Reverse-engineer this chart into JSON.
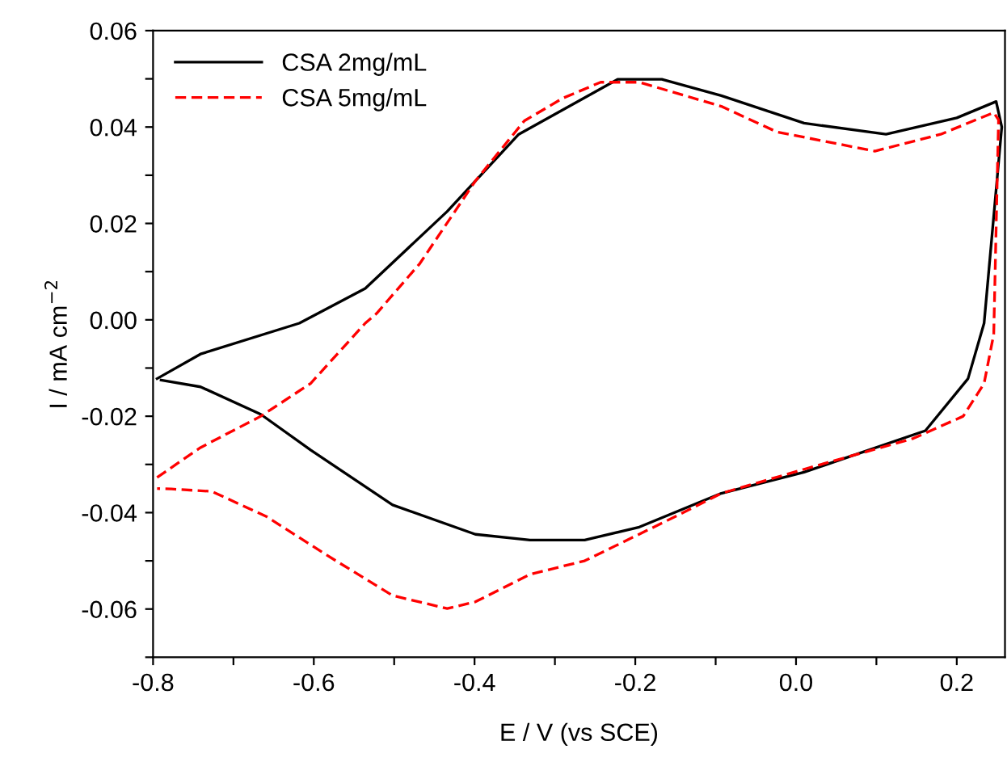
{
  "chart_data": {
    "type": "line",
    "xlabel": "E / V (vs SCE)",
    "ylabel": "I / mA cm$^{−2}$",
    "xlim": [
      -0.8,
      0.26
    ],
    "ylim": [
      -0.07,
      0.06
    ],
    "xticks": [
      -0.8,
      {
        "value": -0.7,
        "label": null
      },
      -0.6,
      {
        "value": -0.5,
        "label": null
      },
      -0.4,
      {
        "value": -0.3,
        "label": null
      },
      -0.2,
      {
        "value": -0.1,
        "label": null
      },
      {
        "value": 0,
        "label": "0.0"
      },
      {
        "value": 0.1,
        "label": null
      },
      0.2
    ],
    "yticks": [
      {
        "value": -0.07,
        "label": null
      },
      -0.06,
      {
        "value": -0.05,
        "label": null
      },
      -0.04,
      {
        "value": -0.03,
        "label": null
      },
      -0.02,
      {
        "value": -0.01,
        "label": null
      },
      {
        "value": 0,
        "label": "0.00"
      },
      {
        "value": 0.01,
        "label": null
      },
      0.02,
      {
        "value": 0.03,
        "label": null
      },
      0.04,
      {
        "value": 0.05,
        "label": null
      },
      0.06
    ],
    "legend": "top left",
    "grid": false,
    "series": [
      {
        "name": "CSA 2mg/mL",
        "color": "#000000",
        "line_style": "solid",
        "x": [
          -0.795,
          -0.741,
          -0.618,
          -0.536,
          -0.434,
          -0.345,
          -0.222,
          -0.167,
          -0.093,
          0.01,
          0.112,
          0.2,
          0.249,
          0.256,
          0.234,
          0.214,
          0.161,
          0.01,
          -0.093,
          -0.195,
          -0.263,
          -0.331,
          -0.399,
          -0.502,
          -0.604,
          -0.666,
          -0.741,
          -0.79
        ],
        "values": [
          -0.0122,
          -0.0071,
          -0.0007,
          0.0065,
          0.0225,
          0.0385,
          0.0499,
          0.0499,
          0.0465,
          0.0408,
          0.0385,
          0.0419,
          0.0453,
          0.04,
          -0.0007,
          -0.0122,
          -0.023,
          -0.0316,
          -0.036,
          -0.043,
          -0.0457,
          -0.0457,
          -0.0445,
          -0.0384,
          -0.027,
          -0.0196,
          -0.0139,
          -0.0125
        ]
      },
      {
        "name": "CSA 5mg/mL",
        "color": "#ff0000",
        "line_style": "dashed",
        "x": [
          -0.795,
          -0.741,
          -0.666,
          -0.604,
          -0.536,
          -0.522,
          -0.468,
          -0.399,
          -0.338,
          -0.29,
          -0.243,
          -0.195,
          -0.093,
          -0.024,
          0.098,
          0.18,
          0.246,
          0.252,
          0.246,
          0.234,
          0.208,
          0.146,
          0.01,
          -0.093,
          -0.161,
          -0.263,
          -0.331,
          -0.399,
          -0.434,
          -0.502,
          -0.584,
          -0.659,
          -0.727,
          -0.777,
          -0.795
        ],
        "values": [
          -0.0327,
          -0.0265,
          -0.02,
          -0.0132,
          -0.0007,
          0.0013,
          0.0117,
          0.0288,
          0.0413,
          0.046,
          0.0493,
          0.0493,
          0.0443,
          0.039,
          0.035,
          0.0385,
          0.043,
          0.0415,
          -0.003,
          -0.0132,
          -0.02,
          -0.0246,
          -0.031,
          -0.036,
          -0.0417,
          -0.05,
          -0.0528,
          -0.0585,
          -0.0599,
          -0.0572,
          -0.0488,
          -0.0408,
          -0.0356,
          -0.0351,
          -0.035
        ]
      }
    ]
  }
}
